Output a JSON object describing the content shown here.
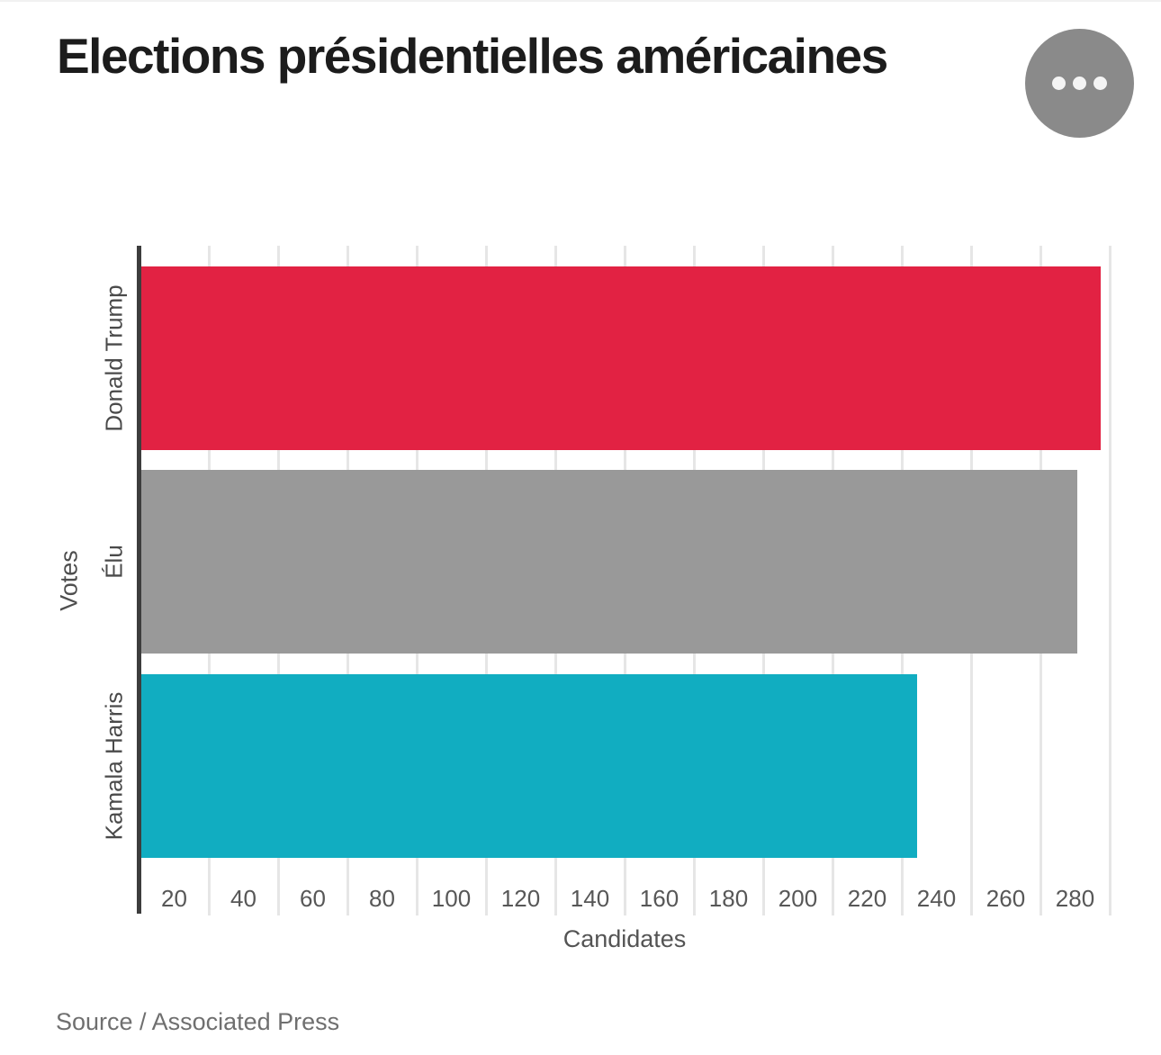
{
  "page": {
    "title": "Elections présidentielles américaines",
    "source_note": "Source / Associated Press"
  },
  "menu": {
    "name": "more-options",
    "icon": "ellipsis-icon",
    "background_color": "#8a8a8a",
    "dot_color": "#f4f4f4"
  },
  "chart_data": {
    "type": "bar",
    "orientation": "horizontal",
    "title": "Elections présidentielles américaines",
    "xlabel": "Candidates",
    "ylabel": "Votes",
    "categories": [
      "Donald Trump",
      "Élu",
      "Kamala Harris"
    ],
    "values": [
      277,
      270,
      224
    ],
    "bar_colors": [
      "#e22243",
      "#999999",
      "#11adc1"
    ],
    "xlim": [
      0,
      283
    ],
    "xticks": [
      20,
      40,
      60,
      80,
      100,
      120,
      140,
      160,
      180,
      200,
      220,
      240,
      260,
      280
    ],
    "grid": true,
    "gridline_color": "#e6e6e6",
    "axis_line_color": "#3d3d3d",
    "tick_label_position": "between-gridlines",
    "legend": "none",
    "source": "Source / Associated Press"
  }
}
